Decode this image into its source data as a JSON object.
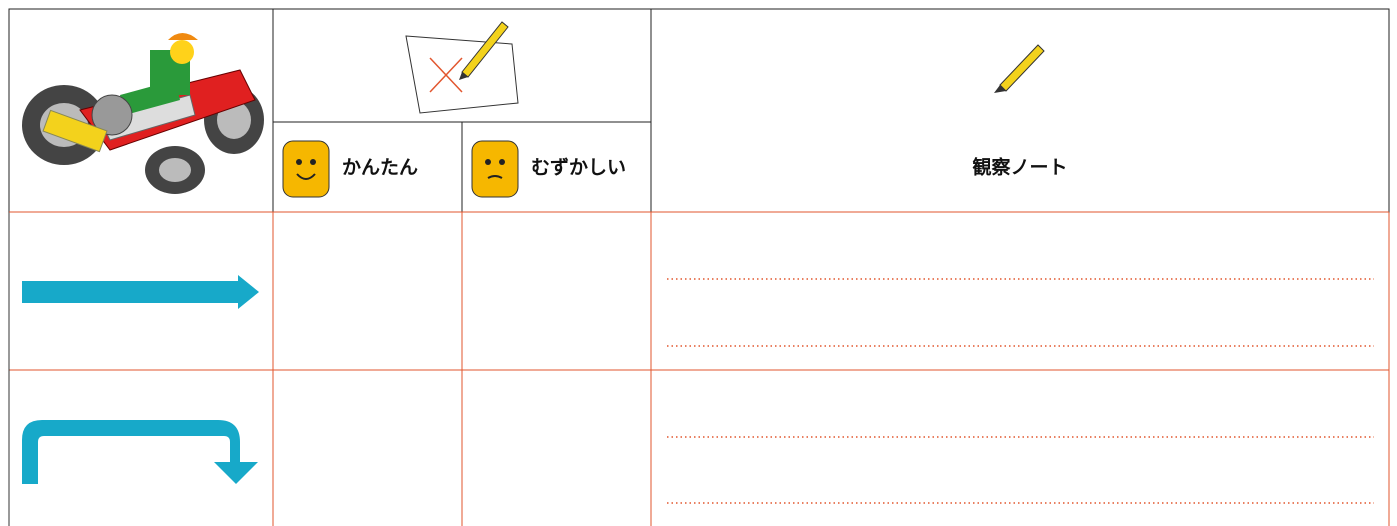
{
  "table": {
    "header": [
      "かんたん",
      "むずかしい",
      "観察ノート"
    ]
  }
}
